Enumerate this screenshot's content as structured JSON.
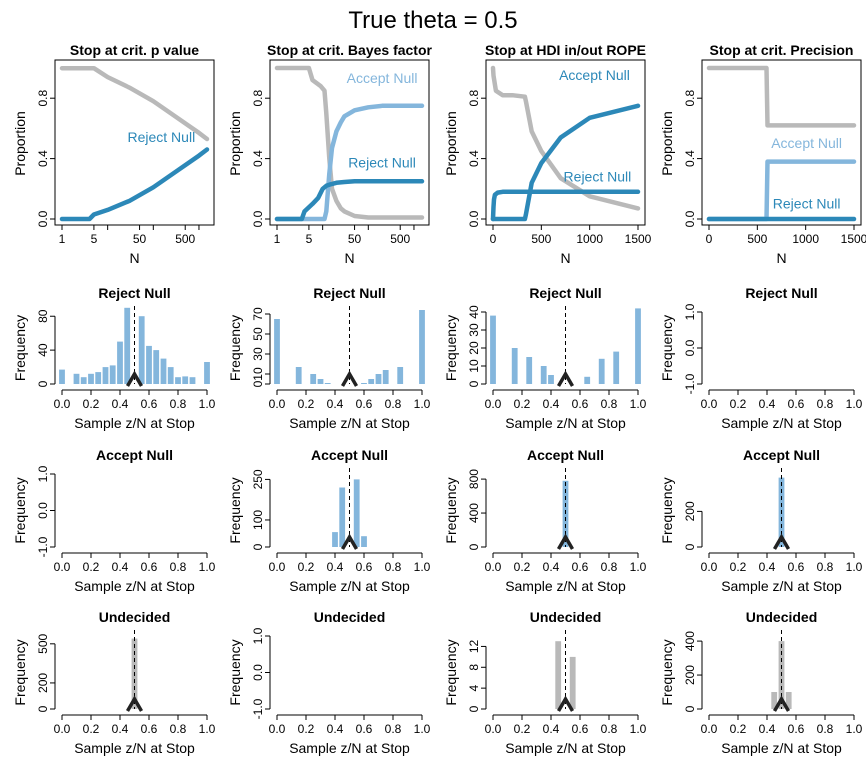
{
  "title": "True theta = 0.5",
  "colors": {
    "light_blue": "#84b6dc",
    "dark_blue": "#2c88b8",
    "gray": "#b9b9b9",
    "black": "#000000"
  },
  "chart_data": [
    {
      "type": "line",
      "title": "Stop at crit. p value",
      "xlabel": "N",
      "ylabel": "Proportion",
      "xscale": "log",
      "xticks": [
        1,
        5,
        50,
        500
      ],
      "xtick_labels": [
        "1",
        "5",
        "50",
        "500"
      ],
      "xlim": [
        1,
        1500
      ],
      "ylim": [
        0,
        1
      ],
      "yticks": [
        0.0,
        0.4,
        0.8
      ],
      "ytick_labels": [
        "0.0",
        "0.4",
        "0.8"
      ],
      "series": [
        {
          "name": "",
          "color": "gray",
          "x": [
            1,
            5,
            10,
            30,
            100,
            300,
            1000,
            1500
          ],
          "y": [
            0.999,
            0.999,
            0.94,
            0.87,
            0.78,
            0.68,
            0.57,
            0.53
          ]
        },
        {
          "name": "Reject Null",
          "color": "dark_blue",
          "x": [
            1,
            4,
            5,
            10,
            30,
            100,
            300,
            1000,
            1500
          ],
          "y": [
            0.0,
            0.0,
            0.03,
            0.06,
            0.12,
            0.21,
            0.31,
            0.42,
            0.46
          ]
        }
      ],
      "labels": [
        {
          "text": "Reject Null",
          "color": "dark_blue",
          "x": 150,
          "y": 0.51
        }
      ]
    },
    {
      "type": "line",
      "title": "Stop at crit. Bayes factor",
      "xlabel": "N",
      "ylabel": "Proportion",
      "xscale": "log",
      "xticks": [
        1,
        5,
        50,
        500
      ],
      "xtick_labels": [
        "1",
        "5",
        "50",
        "500"
      ],
      "xlim": [
        1,
        1500
      ],
      "ylim": [
        0,
        1
      ],
      "yticks": [
        0.0,
        0.4,
        0.8
      ],
      "ytick_labels": [
        "0.0",
        "0.4",
        "0.8"
      ],
      "series": [
        {
          "name": "",
          "color": "gray",
          "x": [
            1,
            5,
            6,
            9,
            11,
            12,
            14,
            16,
            20,
            25,
            30,
            50,
            100,
            1500
          ],
          "y": [
            1.0,
            1.0,
            0.92,
            0.88,
            0.85,
            0.7,
            0.4,
            0.2,
            0.12,
            0.07,
            0.05,
            0.02,
            0.01,
            0.01
          ]
        },
        {
          "name": "Accept Null",
          "color": "light_blue",
          "x": [
            1,
            11,
            12,
            14,
            16,
            20,
            25,
            30,
            50,
            100,
            200,
            1500
          ],
          "y": [
            0.0,
            0.0,
            0.05,
            0.3,
            0.47,
            0.58,
            0.64,
            0.68,
            0.72,
            0.74,
            0.75,
            0.75
          ]
        },
        {
          "name": "Reject Null",
          "color": "dark_blue",
          "x": [
            1,
            3.5,
            4,
            6,
            8,
            10,
            12,
            15,
            20,
            30,
            50,
            1500
          ],
          "y": [
            0.0,
            0.0,
            0.05,
            0.1,
            0.14,
            0.2,
            0.22,
            0.23,
            0.24,
            0.245,
            0.25,
            0.25
          ]
        }
      ],
      "labels": [
        {
          "text": "Accept Null",
          "color": "light_blue",
          "x": 200,
          "y": 0.9
        },
        {
          "text": "Reject Null",
          "color": "dark_blue",
          "x": 200,
          "y": 0.34
        }
      ]
    },
    {
      "type": "line",
      "title": "Stop at HDI in/out ROPE",
      "xlabel": "N",
      "ylabel": "Proportion",
      "xscale": "linear",
      "xticks": [
        0,
        500,
        1000,
        1500
      ],
      "xtick_labels": [
        "0",
        "500",
        "1000",
        "1500"
      ],
      "xlim": [
        0,
        1500
      ],
      "ylim": [
        0,
        1
      ],
      "yticks": [
        0.0,
        0.4,
        0.8
      ],
      "ytick_labels": [
        "0.0",
        "0.4",
        "0.8"
      ],
      "series": [
        {
          "name": "",
          "color": "gray",
          "x": [
            0,
            5,
            30,
            100,
            200,
            330,
            340,
            400,
            500,
            700,
            1000,
            1500
          ],
          "y": [
            1.0,
            0.95,
            0.85,
            0.82,
            0.82,
            0.81,
            0.78,
            0.58,
            0.45,
            0.27,
            0.15,
            0.07
          ]
        },
        {
          "name": "Accept Null",
          "color": "dark_blue",
          "x": [
            0,
            330,
            340,
            400,
            500,
            700,
            1000,
            1500
          ],
          "y": [
            0.0,
            0.0,
            0.03,
            0.24,
            0.37,
            0.54,
            0.67,
            0.75
          ]
        },
        {
          "name": "Reject Null",
          "color": "dark_blue",
          "x": [
            0,
            5,
            10,
            20,
            50,
            100,
            300,
            1500
          ],
          "y": [
            0.0,
            0.08,
            0.13,
            0.16,
            0.175,
            0.18,
            0.18,
            0.18
          ]
        }
      ],
      "labels": [
        {
          "text": "Accept Null",
          "color": "dark_blue",
          "x": 1050,
          "y": 0.92
        },
        {
          "text": "Reject Null",
          "color": "dark_blue",
          "x": 1080,
          "y": 0.25
        }
      ]
    },
    {
      "type": "line",
      "title": "Stop at crit. Precision",
      "xlabel": "N",
      "ylabel": "Proportion",
      "xscale": "linear",
      "xticks": [
        0,
        500,
        1000,
        1500
      ],
      "xtick_labels": [
        "0",
        "500",
        "1000",
        "1500"
      ],
      "xlim": [
        0,
        1500
      ],
      "ylim": [
        0,
        1
      ],
      "yticks": [
        0.0,
        0.4,
        0.8
      ],
      "ytick_labels": [
        "0.0",
        "0.4",
        "0.8"
      ],
      "series": [
        {
          "name": "",
          "color": "gray",
          "x": [
            0,
            595,
            605,
            1500
          ],
          "y": [
            1.0,
            1.0,
            0.62,
            0.62
          ]
        },
        {
          "name": "Accept Null",
          "color": "light_blue",
          "x": [
            0,
            595,
            605,
            1500
          ],
          "y": [
            0.0,
            0.0,
            0.38,
            0.38
          ]
        },
        {
          "name": "Reject Null",
          "color": "dark_blue",
          "x": [
            0,
            1500
          ],
          "y": [
            0.0,
            0.0
          ]
        }
      ],
      "labels": [
        {
          "text": "Accept Null",
          "color": "light_blue",
          "x": 1010,
          "y": 0.47
        },
        {
          "text": "Reject Null",
          "color": "dark_blue",
          "x": 1010,
          "y": 0.07
        }
      ]
    },
    {
      "type": "bar",
      "title": "Reject Null",
      "xlabel": "Sample z/N at Stop",
      "ylabel": "Frequency",
      "color": "light_blue",
      "xlim": [
        0,
        1
      ],
      "ylim": [
        0,
        85
      ],
      "yticks": [
        0,
        40,
        80
      ],
      "ytick_labels": [
        "0",
        "40",
        "80"
      ],
      "bins_x": [
        0.0,
        0.05,
        0.1,
        0.15,
        0.2,
        0.25,
        0.3,
        0.35,
        0.4,
        0.45,
        0.5,
        0.55,
        0.6,
        0.65,
        0.7,
        0.75,
        0.8,
        0.85,
        0.9,
        0.95,
        1.0
      ],
      "values": [
        17,
        0,
        12,
        8,
        12,
        14,
        20,
        22,
        50,
        90,
        0,
        80,
        45,
        40,
        30,
        20,
        8,
        9,
        8,
        0,
        26
      ],
      "marker": 0.5
    },
    {
      "type": "bar",
      "title": "Reject Null",
      "xlabel": "Sample z/N at Stop",
      "ylabel": "Frequency",
      "color": "light_blue",
      "xlim": [
        0,
        1
      ],
      "ylim": [
        0,
        72
      ],
      "yticks": [
        0,
        10,
        30,
        50,
        70
      ],
      "ytick_labels": [
        "0",
        "10",
        "30",
        "50",
        "70"
      ],
      "bins_x": [
        0.0,
        0.05,
        0.1,
        0.15,
        0.2,
        0.25,
        0.3,
        0.35,
        0.4,
        0.45,
        0.5,
        0.55,
        0.6,
        0.65,
        0.7,
        0.75,
        0.8,
        0.85,
        0.9,
        0.95,
        1.0
      ],
      "values": [
        65,
        0,
        0,
        17,
        0,
        10,
        5,
        1,
        0,
        0,
        0,
        0,
        1,
        5,
        10,
        14,
        0,
        17,
        0,
        0,
        74
      ],
      "marker": 0.5
    },
    {
      "type": "bar",
      "title": "Reject Null",
      "xlabel": "Sample z/N at Stop",
      "ylabel": "Frequency",
      "color": "light_blue",
      "xlim": [
        0,
        1
      ],
      "ylim": [
        0,
        40
      ],
      "yticks": [
        0,
        10,
        20,
        30,
        40
      ],
      "ytick_labels": [
        "0",
        "10",
        "20",
        "30",
        "40"
      ],
      "bins_x": [
        0.0,
        0.05,
        0.1,
        0.15,
        0.2,
        0.25,
        0.3,
        0.35,
        0.4,
        0.45,
        0.5,
        0.55,
        0.6,
        0.65,
        0.7,
        0.75,
        0.8,
        0.85,
        0.9,
        0.95,
        1.0
      ],
      "values": [
        38,
        0,
        0,
        20,
        0,
        15,
        0,
        10,
        5,
        0,
        0,
        0,
        0,
        4,
        0,
        14,
        0,
        18,
        0,
        0,
        42
      ],
      "marker": 0.5
    },
    {
      "type": "bar",
      "title": "Reject Null",
      "xlabel": "Sample z/N at Stop",
      "ylabel": "Frequency",
      "color": "light_blue",
      "xlim": [
        0,
        1
      ],
      "ylim": [
        -1,
        1
      ],
      "yticks": [
        -1,
        0,
        1
      ],
      "ytick_labels": [
        "-1.0",
        "0.0",
        "1.0"
      ],
      "bins_x": [],
      "values": [],
      "marker": null
    },
    {
      "type": "bar",
      "title": "Accept Null",
      "xlabel": "Sample z/N at Stop",
      "ylabel": "Frequency",
      "color": "light_blue",
      "xlim": [
        0,
        1
      ],
      "ylim": [
        -1,
        1
      ],
      "yticks": [
        -1,
        0,
        1
      ],
      "ytick_labels": [
        "-1.0",
        "0.0",
        "1.0"
      ],
      "bins_x": [],
      "values": [],
      "marker": null
    },
    {
      "type": "bar",
      "title": "Accept Null",
      "xlabel": "Sample z/N at Stop",
      "ylabel": "Frequency",
      "color": "light_blue",
      "xlim": [
        0,
        1
      ],
      "ylim": [
        0,
        270
      ],
      "yticks": [
        0,
        100,
        250
      ],
      "ytick_labels": [
        "0",
        "100",
        "250"
      ],
      "bins_x": [
        0.4,
        0.45,
        0.5,
        0.55,
        0.6
      ],
      "values": [
        55,
        220,
        0,
        250,
        40
      ],
      "marker": 0.5
    },
    {
      "type": "bar",
      "title": "Accept Null",
      "xlabel": "Sample z/N at Stop",
      "ylabel": "Frequency",
      "color": "light_blue",
      "xlim": [
        0,
        1
      ],
      "ylim": [
        0,
        860
      ],
      "yticks": [
        0,
        400,
        800
      ],
      "ytick_labels": [
        "0",
        "400",
        "800"
      ],
      "bins_x": [
        0.5
      ],
      "values": [
        780
      ],
      "marker": 0.5
    },
    {
      "type": "bar",
      "title": "Accept Null",
      "xlabel": "Sample z/N at Stop",
      "ylabel": "Frequency",
      "color": "light_blue",
      "xlim": [
        0,
        1
      ],
      "ylim": [
        0,
        410
      ],
      "yticks": [
        0,
        200
      ],
      "ytick_labels": [
        "0",
        "200"
      ],
      "bins_x": [
        0.5
      ],
      "values": [
        390
      ],
      "marker": 0.5
    },
    {
      "type": "bar",
      "title": "Undecided",
      "xlabel": "Sample z/N at Stop",
      "ylabel": "Frequency",
      "color": "gray",
      "xlim": [
        0,
        1
      ],
      "ylim": [
        0,
        560
      ],
      "yticks": [
        0,
        200,
        500
      ],
      "ytick_labels": [
        "0",
        "200",
        "500"
      ],
      "bins_x": [
        0.5
      ],
      "values": [
        540
      ],
      "marker": 0.5
    },
    {
      "type": "bar",
      "title": "Undecided",
      "xlabel": "Sample z/N at Stop",
      "ylabel": "Frequency",
      "color": "gray",
      "xlim": [
        0,
        1
      ],
      "ylim": [
        -1,
        1
      ],
      "yticks": [
        -1,
        0,
        1
      ],
      "ytick_labels": [
        "-1.0",
        "0.0",
        "1.0"
      ],
      "bins_x": [],
      "values": [],
      "marker": null
    },
    {
      "type": "bar",
      "title": "Undecided",
      "xlabel": "Sample z/N at Stop",
      "ylabel": "Frequency",
      "color": "gray",
      "xlim": [
        0,
        1
      ],
      "ylim": [
        0,
        14
      ],
      "yticks": [
        0,
        4,
        8,
        12
      ],
      "ytick_labels": [
        "0",
        "4",
        "8",
        "12"
      ],
      "bins_x": [
        0.45,
        0.55
      ],
      "values": [
        13,
        10
      ],
      "marker": 0.5
    },
    {
      "type": "bar",
      "title": "Undecided",
      "xlabel": "Sample z/N at Stop",
      "ylabel": "Frequency",
      "color": "gray",
      "xlim": [
        0,
        1
      ],
      "ylim": [
        0,
        430
      ],
      "yticks": [
        0,
        200,
        400
      ],
      "ytick_labels": [
        "0",
        "200",
        "400"
      ],
      "bins_x": [
        0.45,
        0.5,
        0.55
      ],
      "values": [
        100,
        400,
        100
      ],
      "marker": 0.5
    }
  ],
  "xtick_labels_hist": [
    "0.0",
    "0.2",
    "0.4",
    "0.6",
    "0.8",
    "1.0"
  ]
}
